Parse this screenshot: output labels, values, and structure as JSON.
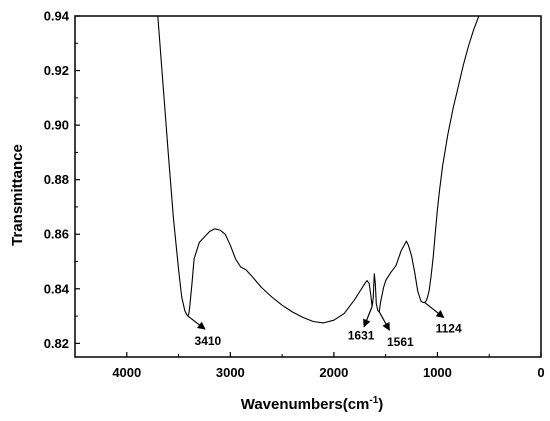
{
  "chart_data": {
    "type": "line",
    "xlabel": "Wavenumbers(cm",
    "xlabel_sup": "-1",
    "xlabel_close": ")",
    "ylabel": "Transmittance",
    "xlim": [
      4500,
      0
    ],
    "ylim": [
      0.815,
      0.94
    ],
    "x_ticks": [
      4000,
      3000,
      2000,
      1000,
      0
    ],
    "y_ticks": [
      0.82,
      0.84,
      0.86,
      0.88,
      0.9,
      0.92,
      0.94
    ],
    "x_tick_labels": [
      "4000",
      "3000",
      "2000",
      "1000",
      "0"
    ],
    "y_tick_labels": [
      "0.82",
      "0.84",
      "0.86",
      "0.88",
      "0.90",
      "0.92",
      "0.94"
    ],
    "grid": false,
    "series": [
      {
        "x": [
          3700,
          3650,
          3600,
          3550,
          3500,
          3470,
          3440,
          3420,
          3410,
          3400,
          3390,
          3370,
          3350,
          3300,
          3250,
          3200,
          3150,
          3100,
          3050,
          3000,
          2950,
          2900,
          2850,
          2800,
          2700,
          2600,
          2500,
          2400,
          2300,
          2200,
          2100,
          2000,
          1900,
          1800,
          1750,
          1700,
          1680,
          1660,
          1645,
          1631,
          1620,
          1610,
          1600,
          1590,
          1575,
          1561,
          1550,
          1520,
          1500,
          1450,
          1400,
          1350,
          1300,
          1280,
          1250,
          1220,
          1190,
          1160,
          1140,
          1124,
          1110,
          1095,
          1080,
          1060,
          1040,
          1020,
          1000,
          980,
          950,
          900,
          850,
          800,
          750,
          700,
          650,
          600
        ],
        "y": [
          0.94,
          0.915,
          0.89,
          0.866,
          0.847,
          0.837,
          0.832,
          0.8305,
          0.83,
          0.831,
          0.834,
          0.842,
          0.851,
          0.857,
          0.859,
          0.861,
          0.862,
          0.8615,
          0.86,
          0.856,
          0.851,
          0.848,
          0.847,
          0.845,
          0.8405,
          0.837,
          0.834,
          0.8315,
          0.8295,
          0.828,
          0.8275,
          0.8285,
          0.831,
          0.836,
          0.839,
          0.842,
          0.843,
          0.842,
          0.838,
          0.8335,
          0.8365,
          0.8455,
          0.842,
          0.8345,
          0.832,
          0.8315,
          0.835,
          0.8405,
          0.843,
          0.846,
          0.8485,
          0.854,
          0.8575,
          0.856,
          0.852,
          0.846,
          0.839,
          0.8355,
          0.835,
          0.835,
          0.8355,
          0.837,
          0.8395,
          0.845,
          0.852,
          0.861,
          0.869,
          0.876,
          0.885,
          0.8965,
          0.906,
          0.914,
          0.922,
          0.929,
          0.935,
          0.94
        ]
      }
    ],
    "annotations": [
      {
        "label": "3410",
        "x": 3410,
        "y": 0.83
      },
      {
        "label": "1631",
        "x": 1631,
        "y": 0.8335
      },
      {
        "label": "1561",
        "x": 1561,
        "y": 0.8315
      },
      {
        "label": "1124",
        "x": 1124,
        "y": 0.835
      }
    ]
  }
}
